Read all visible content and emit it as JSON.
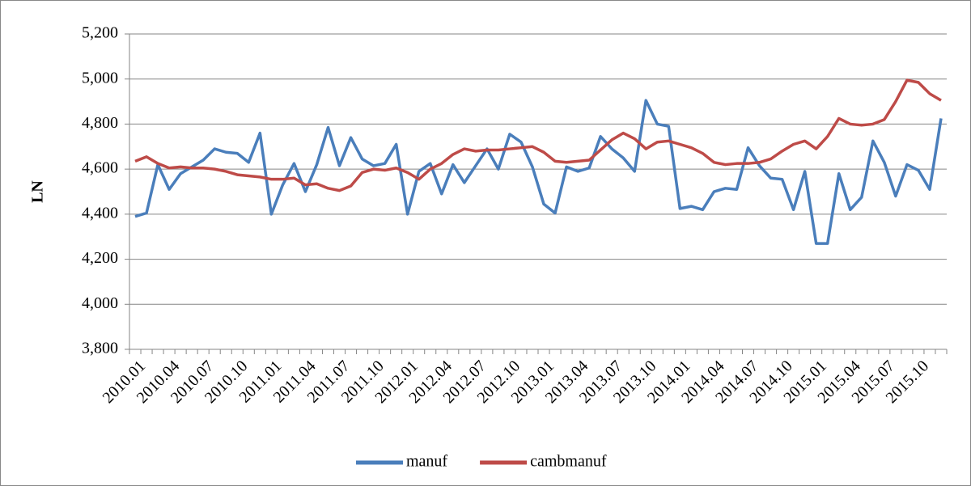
{
  "chart_data": {
    "type": "line",
    "y_label": "LN",
    "categories": [
      "2010.01",
      null,
      null,
      "2010.04",
      null,
      null,
      "2010.07",
      null,
      null,
      "2010.10",
      null,
      null,
      "2011.01",
      null,
      null,
      "2011.04",
      null,
      null,
      "2011.07",
      null,
      null,
      "2011.10",
      null,
      null,
      "2012.01",
      null,
      null,
      "2012.04",
      null,
      null,
      "2012.07",
      null,
      null,
      "2012.10",
      null,
      null,
      "2013.01",
      null,
      null,
      "2013.04",
      null,
      null,
      "2013.07",
      null,
      null,
      "2013.10",
      null,
      null,
      "2014.01",
      null,
      null,
      "2014.04",
      null,
      null,
      "2014.07",
      null,
      null,
      "2014.10",
      null,
      null,
      "2015.01",
      null,
      null,
      "2015.04",
      null,
      null,
      "2015.07",
      null,
      null,
      "2015.10",
      null,
      null
    ],
    "series": [
      {
        "name": "manuf",
        "color": "#4a7ebb",
        "values": [
          4390,
          4405,
          4620,
          4510,
          4580,
          4610,
          4640,
          4690,
          4675,
          4670,
          4630,
          4760,
          4400,
          4530,
          4625,
          4500,
          4620,
          4785,
          4615,
          4740,
          4645,
          4615,
          4625,
          4710,
          4400,
          4590,
          4625,
          4490,
          4620,
          4540,
          4615,
          4690,
          4600,
          4755,
          4720,
          4610,
          4445,
          4405,
          4610,
          4590,
          4605,
          4745,
          4690,
          4650,
          4590,
          4905,
          4800,
          4790,
          4425,
          4435,
          4420,
          4500,
          4515,
          4510,
          4695,
          4615,
          4560,
          4555,
          4420,
          4590,
          4270,
          4270,
          4580,
          4420,
          4475,
          4725,
          4630,
          4480,
          4620,
          4595,
          4510,
          4825
        ]
      },
      {
        "name": "cambmanuf",
        "color": "#be4b48",
        "values": [
          4635,
          4655,
          4625,
          4605,
          4610,
          4605,
          4605,
          4600,
          4590,
          4575,
          4570,
          4565,
          4555,
          4555,
          4560,
          4530,
          4535,
          4515,
          4505,
          4525,
          4585,
          4600,
          4595,
          4605,
          4585,
          4555,
          4600,
          4625,
          4665,
          4690,
          4680,
          4685,
          4685,
          4690,
          4695,
          4700,
          4675,
          4635,
          4630,
          4635,
          4640,
          4685,
          4730,
          4760,
          4735,
          4690,
          4720,
          4725,
          4710,
          4695,
          4670,
          4630,
          4620,
          4625,
          4625,
          4630,
          4645,
          4680,
          4710,
          4725,
          4690,
          4745,
          4825,
          4800,
          4795,
          4800,
          4820,
          4900,
          4995,
          4985,
          4935,
          4905
        ]
      }
    ],
    "ylim": [
      3800,
      5200
    ],
    "yticks": [
      {
        "value": 3800,
        "label": "3,800"
      },
      {
        "value": 4000,
        "label": "4,000"
      },
      {
        "value": 4200,
        "label": "4,200"
      },
      {
        "value": 4400,
        "label": "4,400"
      },
      {
        "value": 4600,
        "label": "4,600"
      },
      {
        "value": 4800,
        "label": "4,800"
      },
      {
        "value": 5000,
        "label": "5,000"
      },
      {
        "value": 5200,
        "label": "5,200"
      }
    ],
    "grid": true,
    "legend": "bottom"
  }
}
